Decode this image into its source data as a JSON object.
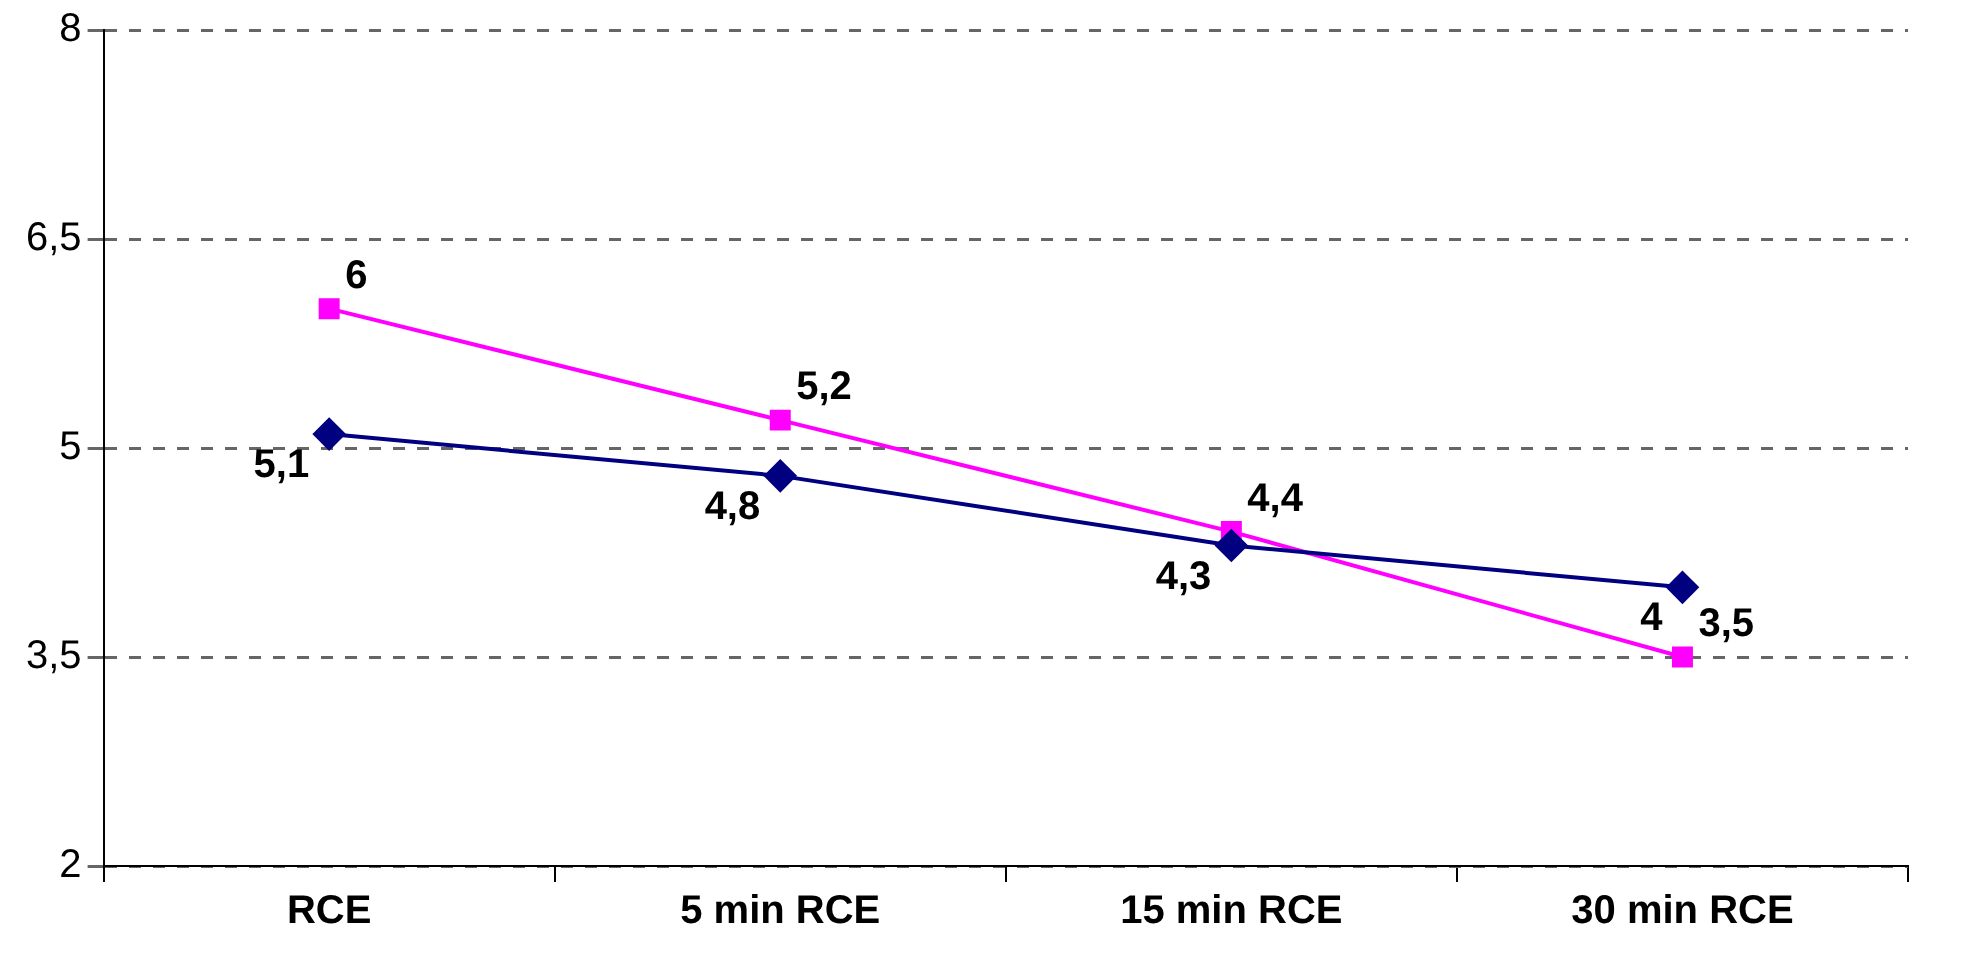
{
  "chart_data": {
    "type": "line",
    "categories": [
      "RCE",
      "5 min RCE",
      "15 min RCE",
      "30 min RCE"
    ],
    "series": [
      {
        "color": "#000080",
        "marker": "diamond",
        "values": [
          5.1,
          4.8,
          4.3,
          4
        ],
        "value_labels": [
          "5,1",
          "4,8",
          "4,3",
          "4"
        ]
      },
      {
        "color": "#ff00ff",
        "marker": "square",
        "values": [
          6,
          5.2,
          4.4,
          3.5
        ],
        "value_labels": [
          "6",
          "5,2",
          "4,4",
          "3,5"
        ]
      }
    ],
    "ylim": [
      2,
      8
    ],
    "yticks": [
      2,
      {
        "value": 3.5,
        "label": "3,5"
      },
      5,
      {
        "value": 6.5,
        "label": "6,5"
      },
      8
    ],
    "grid": "y",
    "line_style": "solid",
    "legend": false
  }
}
